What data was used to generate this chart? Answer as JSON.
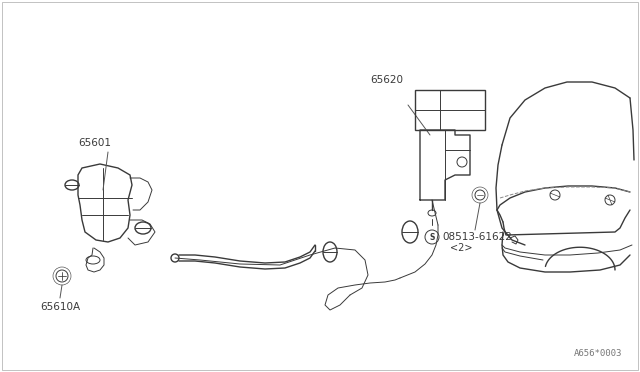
{
  "bg_color": "#ffffff",
  "line_color": "#3a3a3a",
  "label_color": "#3a3a3a",
  "fig_width": 6.4,
  "fig_height": 3.72,
  "dpi": 100,
  "watermark": "A656*0003",
  "border_color": "#cccccc"
}
